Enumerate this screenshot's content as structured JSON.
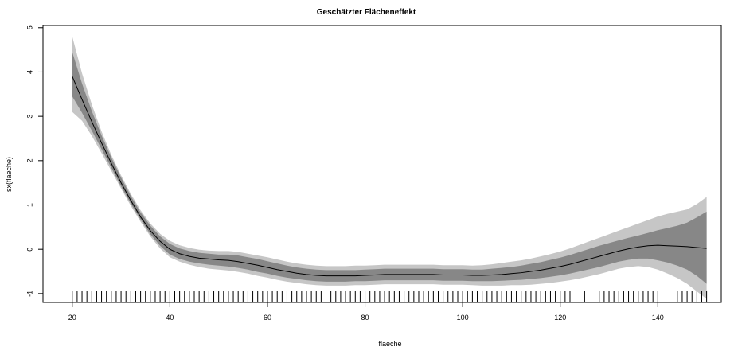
{
  "chart_data": {
    "type": "line",
    "title": "Geschätzter Flächeneffekt",
    "xlabel": "flaeche",
    "ylabel": "sx(flaeche)",
    "xlim": [
      14,
      153
    ],
    "ylim": [
      -1.2,
      5.05
    ],
    "x_ticks": [
      20,
      40,
      60,
      80,
      100,
      120,
      140
    ],
    "y_ticks": [
      -1,
      0,
      1,
      2,
      3,
      4,
      5
    ],
    "grid": false,
    "colors": {
      "line": "#000000",
      "band_80": "#878787",
      "band_95": "#c6c6c6",
      "axis": "#000000"
    },
    "x": [
      20,
      22,
      24,
      26,
      28,
      30,
      32,
      34,
      36,
      38,
      40,
      42,
      44,
      46,
      48,
      50,
      52,
      54,
      56,
      58,
      60,
      62,
      64,
      66,
      68,
      70,
      72,
      74,
      76,
      78,
      80,
      82,
      84,
      86,
      88,
      90,
      92,
      94,
      96,
      98,
      100,
      102,
      104,
      106,
      108,
      110,
      112,
      114,
      116,
      118,
      120,
      122,
      124,
      126,
      128,
      130,
      132,
      134,
      136,
      138,
      140,
      142,
      144,
      146,
      148,
      150
    ],
    "series": [
      {
        "values": [
          3.9,
          3.38,
          2.88,
          2.4,
          1.94,
          1.5,
          1.1,
          0.73,
          0.42,
          0.18,
          0.0,
          -0.1,
          -0.16,
          -0.2,
          -0.22,
          -0.24,
          -0.25,
          -0.28,
          -0.32,
          -0.36,
          -0.41,
          -0.46,
          -0.5,
          -0.54,
          -0.57,
          -0.59,
          -0.6,
          -0.6,
          -0.6,
          -0.6,
          -0.59,
          -0.58,
          -0.57,
          -0.57,
          -0.57,
          -0.57,
          -0.57,
          -0.57,
          -0.58,
          -0.58,
          -0.58,
          -0.59,
          -0.59,
          -0.58,
          -0.57,
          -0.55,
          -0.53,
          -0.5,
          -0.47,
          -0.43,
          -0.39,
          -0.34,
          -0.28,
          -0.22,
          -0.16,
          -0.1,
          -0.04,
          0.01,
          0.05,
          0.08,
          0.09,
          0.08,
          0.07,
          0.06,
          0.04,
          0.02
        ],
        "lower_80": [
          3.45,
          3.08,
          2.68,
          2.26,
          1.84,
          1.42,
          1.03,
          0.67,
          0.34,
          0.08,
          -0.12,
          -0.22,
          -0.28,
          -0.32,
          -0.35,
          -0.37,
          -0.39,
          -0.42,
          -0.46,
          -0.51,
          -0.55,
          -0.6,
          -0.64,
          -0.67,
          -0.7,
          -0.72,
          -0.73,
          -0.73,
          -0.73,
          -0.72,
          -0.72,
          -0.71,
          -0.7,
          -0.7,
          -0.7,
          -0.7,
          -0.7,
          -0.7,
          -0.71,
          -0.71,
          -0.71,
          -0.72,
          -0.72,
          -0.72,
          -0.71,
          -0.7,
          -0.69,
          -0.67,
          -0.65,
          -0.62,
          -0.59,
          -0.55,
          -0.5,
          -0.45,
          -0.4,
          -0.34,
          -0.28,
          -0.24,
          -0.21,
          -0.21,
          -0.25,
          -0.3,
          -0.37,
          -0.46,
          -0.6,
          -0.78
        ],
        "upper_80": [
          4.45,
          3.74,
          3.12,
          2.57,
          2.07,
          1.62,
          1.2,
          0.83,
          0.53,
          0.29,
          0.12,
          0.02,
          -0.04,
          -0.08,
          -0.1,
          -0.12,
          -0.12,
          -0.14,
          -0.18,
          -0.22,
          -0.27,
          -0.32,
          -0.37,
          -0.41,
          -0.44,
          -0.46,
          -0.47,
          -0.47,
          -0.47,
          -0.47,
          -0.46,
          -0.45,
          -0.44,
          -0.44,
          -0.44,
          -0.44,
          -0.44,
          -0.44,
          -0.45,
          -0.45,
          -0.45,
          -0.46,
          -0.46,
          -0.44,
          -0.42,
          -0.4,
          -0.37,
          -0.33,
          -0.29,
          -0.24,
          -0.19,
          -0.13,
          -0.06,
          0.01,
          0.08,
          0.14,
          0.2,
          0.26,
          0.31,
          0.37,
          0.43,
          0.48,
          0.53,
          0.6,
          0.72,
          0.85
        ],
        "lower_95": [
          3.1,
          2.9,
          2.56,
          2.17,
          1.77,
          1.37,
          0.98,
          0.62,
          0.29,
          0.02,
          -0.18,
          -0.28,
          -0.35,
          -0.4,
          -0.44,
          -0.46,
          -0.48,
          -0.51,
          -0.55,
          -0.6,
          -0.64,
          -0.69,
          -0.73,
          -0.76,
          -0.79,
          -0.81,
          -0.82,
          -0.82,
          -0.82,
          -0.81,
          -0.81,
          -0.8,
          -0.79,
          -0.79,
          -0.79,
          -0.79,
          -0.79,
          -0.79,
          -0.8,
          -0.8,
          -0.8,
          -0.81,
          -0.82,
          -0.82,
          -0.82,
          -0.81,
          -0.81,
          -0.8,
          -0.78,
          -0.76,
          -0.73,
          -0.7,
          -0.66,
          -0.61,
          -0.56,
          -0.5,
          -0.44,
          -0.4,
          -0.38,
          -0.4,
          -0.46,
          -0.55,
          -0.65,
          -0.78,
          -0.95,
          -1.12
        ],
        "upper_95": [
          4.8,
          3.97,
          3.27,
          2.66,
          2.13,
          1.67,
          1.25,
          0.88,
          0.58,
          0.35,
          0.19,
          0.09,
          0.03,
          -0.01,
          -0.03,
          -0.04,
          -0.04,
          -0.06,
          -0.1,
          -0.14,
          -0.18,
          -0.23,
          -0.28,
          -0.32,
          -0.35,
          -0.37,
          -0.38,
          -0.38,
          -0.38,
          -0.37,
          -0.37,
          -0.36,
          -0.35,
          -0.35,
          -0.35,
          -0.35,
          -0.35,
          -0.35,
          -0.36,
          -0.36,
          -0.36,
          -0.37,
          -0.36,
          -0.34,
          -0.31,
          -0.28,
          -0.25,
          -0.21,
          -0.16,
          -0.11,
          -0.05,
          0.02,
          0.1,
          0.18,
          0.26,
          0.34,
          0.42,
          0.5,
          0.58,
          0.66,
          0.74,
          0.8,
          0.85,
          0.9,
          1.02,
          1.18
        ]
      }
    ],
    "rug": [
      20,
      21,
      22,
      23,
      24,
      25,
      26,
      27,
      28,
      29,
      30,
      31,
      32,
      33,
      34,
      35,
      36,
      37,
      38,
      39,
      40,
      41,
      42,
      43,
      44,
      45,
      46,
      47,
      48,
      49,
      50,
      51,
      52,
      53,
      54,
      55,
      56,
      57,
      58,
      59,
      60,
      61,
      62,
      63,
      64,
      65,
      66,
      67,
      68,
      69,
      70,
      71,
      72,
      73,
      74,
      75,
      76,
      77,
      78,
      79,
      80,
      81,
      82,
      83,
      84,
      85,
      86,
      87,
      88,
      89,
      90,
      91,
      92,
      93,
      94,
      95,
      96,
      97,
      98,
      99,
      100,
      101,
      102,
      103,
      104,
      105,
      106,
      107,
      108,
      109,
      110,
      111,
      112,
      113,
      114,
      115,
      116,
      117,
      118,
      119,
      120,
      121,
      122,
      125,
      128,
      129,
      130,
      131,
      132,
      133,
      134,
      135,
      136,
      137,
      138,
      139,
      140,
      144,
      145,
      146,
      147,
      148,
      149,
      150
    ]
  }
}
